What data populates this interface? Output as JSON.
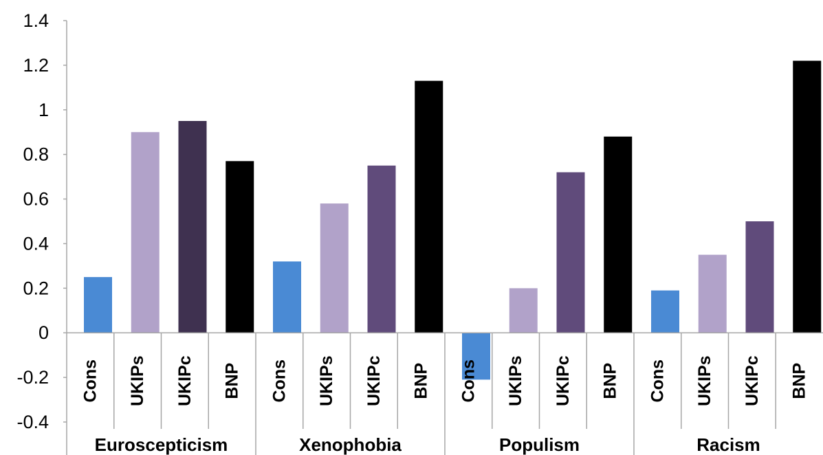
{
  "chart_data": {
    "type": "bar",
    "title": "",
    "xlabel": "",
    "ylabel": "",
    "ylim": [
      -0.4,
      1.4
    ],
    "yticks": [
      "-0.4",
      "-0.2",
      "0",
      "0.2",
      "0.4",
      "0.6",
      "0.8",
      "1",
      "1.2",
      "1.4"
    ],
    "grid": false,
    "legend": "none",
    "groups": [
      {
        "label": "Euroscepticism",
        "bars": [
          {
            "category": "Cons",
            "value": 0.25,
            "color": "#4a8ad4"
          },
          {
            "category": "UKIPs",
            "value": 0.9,
            "color": "#b1a2c9"
          },
          {
            "category": "UKIPc",
            "value": 0.95,
            "color": "#3f3150"
          },
          {
            "category": "BNP",
            "value": 0.77,
            "color": "#000000"
          }
        ]
      },
      {
        "label": "Xenophobia",
        "bars": [
          {
            "category": "Cons",
            "value": 0.32,
            "color": "#4a8ad4"
          },
          {
            "category": "UKIPs",
            "value": 0.58,
            "color": "#b1a2c9"
          },
          {
            "category": "UKIPc",
            "value": 0.75,
            "color": "#604b7b"
          },
          {
            "category": "BNP",
            "value": 1.13,
            "color": "#000000"
          }
        ]
      },
      {
        "label": "Populism",
        "bars": [
          {
            "category": "Cons",
            "value": -0.21,
            "color": "#4a8ad4"
          },
          {
            "category": "UKIPs",
            "value": 0.2,
            "color": "#b1a2c9"
          },
          {
            "category": "UKIPc",
            "value": 0.72,
            "color": "#604b7b"
          },
          {
            "category": "BNP",
            "value": 0.88,
            "color": "#000000"
          }
        ]
      },
      {
        "label": "Racism",
        "bars": [
          {
            "category": "Cons",
            "value": 0.19,
            "color": "#4a8ad4"
          },
          {
            "category": "UKIPs",
            "value": 0.35,
            "color": "#b1a2c9"
          },
          {
            "category": "UKIPc",
            "value": 0.5,
            "color": "#604b7b"
          },
          {
            "category": "BNP",
            "value": 1.22,
            "color": "#000000"
          }
        ]
      }
    ]
  }
}
